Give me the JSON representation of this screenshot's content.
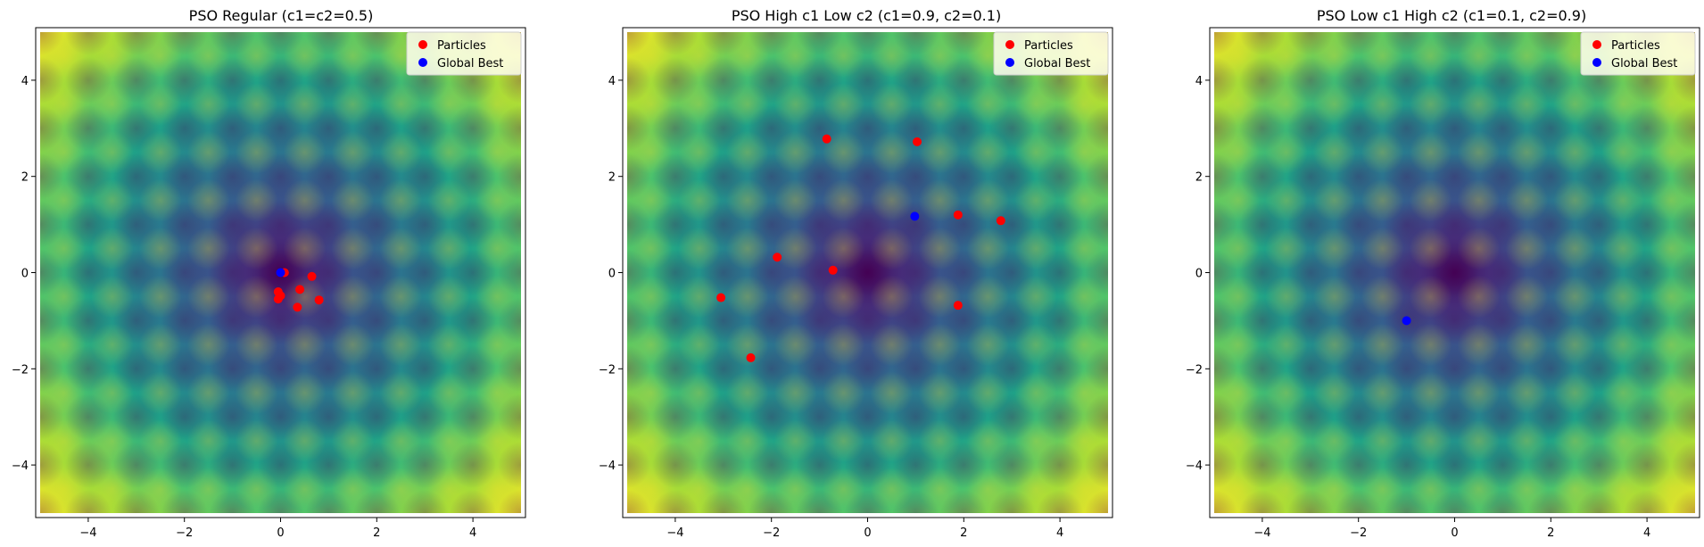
{
  "chart_data": [
    {
      "type": "scatter",
      "title": "PSO Regular (c1=c2=0.5)",
      "xlim": [
        -5,
        5
      ],
      "ylim": [
        -5,
        5
      ],
      "xticks": [
        -4,
        -2,
        0,
        2,
        4
      ],
      "yticks": [
        -4,
        -2,
        0,
        2,
        4
      ],
      "background": "Rastrigin-like contour (viridis), minimum at (0, 0)",
      "legend_position": "top-right",
      "series": [
        {
          "name": "Particles",
          "color": "#ff0000",
          "points": [
            [
              0.08,
              0.0
            ],
            [
              0.65,
              -0.08
            ],
            [
              0.4,
              -0.35
            ],
            [
              0.8,
              -0.57
            ],
            [
              0.35,
              -0.72
            ],
            [
              -0.05,
              -0.4
            ],
            [
              -0.05,
              -0.55
            ],
            [
              0.0,
              -0.48
            ]
          ]
        },
        {
          "name": "Global Best",
          "color": "#0000ff",
          "points": [
            [
              0.0,
              0.0
            ]
          ]
        }
      ]
    },
    {
      "type": "scatter",
      "title": "PSO High c1 Low c2 (c1=0.9, c2=0.1)",
      "xlim": [
        -5,
        5
      ],
      "ylim": [
        -5,
        5
      ],
      "xticks": [
        -4,
        -2,
        0,
        2,
        4
      ],
      "yticks": [
        -4,
        -2,
        0,
        2,
        4
      ],
      "background": "Rastrigin-like contour (viridis), minimum at (0, 0)",
      "legend_position": "top-right",
      "series": [
        {
          "name": "Particles",
          "color": "#ff0000",
          "points": [
            [
              -0.85,
              2.78
            ],
            [
              1.03,
              2.72
            ],
            [
              1.88,
              1.2
            ],
            [
              2.77,
              1.08
            ],
            [
              -1.88,
              0.32
            ],
            [
              -0.72,
              0.05
            ],
            [
              -3.05,
              -0.52
            ],
            [
              1.88,
              -0.68
            ],
            [
              -2.43,
              -1.77
            ]
          ]
        },
        {
          "name": "Global Best",
          "color": "#0000ff",
          "points": [
            [
              0.98,
              1.17
            ]
          ]
        }
      ]
    },
    {
      "type": "scatter",
      "title": "PSO Low c1 High c2 (c1=0.1, c2=0.9)",
      "xlim": [
        -5,
        5
      ],
      "ylim": [
        -5,
        5
      ],
      "xticks": [
        -4,
        -2,
        0,
        2,
        4
      ],
      "yticks": [
        -4,
        -2,
        0,
        2,
        4
      ],
      "background": "Rastrigin-like contour (viridis), minimum at (0, 0)",
      "legend_position": "top-right",
      "series": [
        {
          "name": "Particles",
          "color": "#ff0000",
          "points": []
        },
        {
          "name": "Global Best",
          "color": "#0000ff",
          "points": [
            [
              -1.0,
              -1.0
            ]
          ]
        }
      ]
    }
  ]
}
